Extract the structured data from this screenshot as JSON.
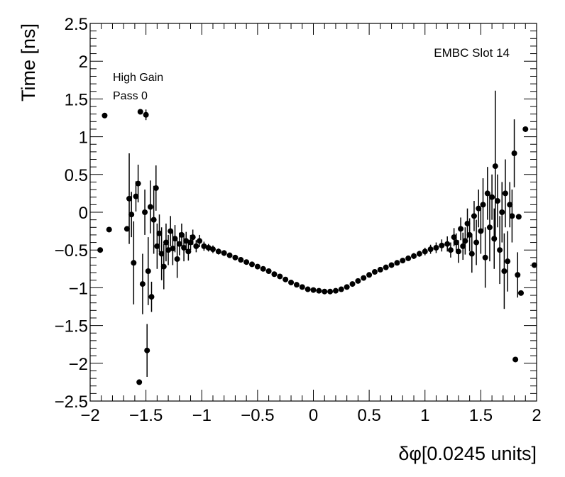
{
  "chart_data": {
    "type": "scatter",
    "title": "EMBC Slot 14",
    "annotations": [
      "High Gain",
      "Pass 0"
    ],
    "xlabel": "δφ[0.0245 units]",
    "ylabel": "Time [ns]",
    "xlim": [
      -2,
      2
    ],
    "ylim": [
      -2.5,
      2.5
    ],
    "x_ticks": [
      "−2",
      "−1.5",
      "−1",
      "−0.5",
      "0",
      "0.5",
      "1",
      "1.5",
      "2"
    ],
    "y_ticks": [
      "2.5",
      "2",
      "1.5",
      "1",
      "0.5",
      "0",
      "−0.5",
      "−1",
      "−1.5",
      "−2",
      "−2.5"
    ],
    "grid": false,
    "marker_color": "#000000",
    "points": [
      {
        "x": -1.87,
        "y": 1.28,
        "err": 0
      },
      {
        "x": -1.91,
        "y": -0.5,
        "err": 0
      },
      {
        "x": -1.83,
        "y": -0.23,
        "err": 0
      },
      {
        "x": -1.55,
        "y": 1.33,
        "err": 0
      },
      {
        "x": -1.5,
        "y": 1.29,
        "err": 0.07
      },
      {
        "x": -1.67,
        "y": -0.22,
        "err": 0
      },
      {
        "x": -1.65,
        "y": 0.18,
        "err": 0.6
      },
      {
        "x": -1.63,
        "y": -0.03,
        "err": 0.3
      },
      {
        "x": -1.61,
        "y": -0.67,
        "err": 0.55
      },
      {
        "x": -1.59,
        "y": 0.21,
        "err": 0.2
      },
      {
        "x": -1.57,
        "y": 0.38,
        "err": 0.25
      },
      {
        "x": -1.56,
        "y": -2.25,
        "err": 0
      },
      {
        "x": -1.53,
        "y": -0.95,
        "err": 0.4
      },
      {
        "x": -1.51,
        "y": 0.0,
        "err": 0.3
      },
      {
        "x": -1.49,
        "y": -1.83,
        "err": 0.35
      },
      {
        "x": -1.48,
        "y": -0.78,
        "err": 0.45
      },
      {
        "x": -1.46,
        "y": 0.07,
        "err": 0.35
      },
      {
        "x": -1.45,
        "y": -1.12,
        "err": 0.2
      },
      {
        "x": -1.43,
        "y": -0.1,
        "err": 0.45
      },
      {
        "x": -1.41,
        "y": 0.32,
        "err": 0.3
      },
      {
        "x": -1.4,
        "y": -0.45,
        "err": 0.3
      },
      {
        "x": -1.38,
        "y": -0.28,
        "err": 0.25
      },
      {
        "x": -1.36,
        "y": -0.55,
        "err": 0.35
      },
      {
        "x": -1.34,
        "y": -0.72,
        "err": 0.3
      },
      {
        "x": -1.32,
        "y": -0.4,
        "err": 0.25
      },
      {
        "x": -1.3,
        "y": -0.5,
        "err": 0.2
      },
      {
        "x": -1.28,
        "y": -0.25,
        "err": 0.2
      },
      {
        "x": -1.26,
        "y": -0.48,
        "err": 0.22
      },
      {
        "x": -1.24,
        "y": -0.35,
        "err": 0.18
      },
      {
        "x": -1.22,
        "y": -0.62,
        "err": 0.25
      },
      {
        "x": -1.2,
        "y": -0.42,
        "err": 0.15
      },
      {
        "x": -1.18,
        "y": -0.3,
        "err": 0.15
      },
      {
        "x": -1.16,
        "y": -0.47,
        "err": 0.18
      },
      {
        "x": -1.14,
        "y": -0.38,
        "err": 0.12
      },
      {
        "x": -1.12,
        "y": -0.52,
        "err": 0.12
      },
      {
        "x": -1.1,
        "y": -0.4,
        "err": 0.1
      },
      {
        "x": -1.08,
        "y": -0.33,
        "err": 0.1
      },
      {
        "x": -1.05,
        "y": -0.45,
        "err": 0.08
      },
      {
        "x": -1.02,
        "y": -0.38,
        "err": 0.08
      },
      {
        "x": -0.98,
        "y": -0.45,
        "err": 0.06
      },
      {
        "x": -0.94,
        "y": -0.47,
        "err": 0.05
      },
      {
        "x": -0.9,
        "y": -0.49,
        "err": 0.05
      },
      {
        "x": -0.85,
        "y": -0.52,
        "err": 0.04
      },
      {
        "x": -0.8,
        "y": -0.54,
        "err": 0.04
      },
      {
        "x": -0.75,
        "y": -0.57,
        "err": 0.03
      },
      {
        "x": -0.7,
        "y": -0.6,
        "err": 0.03
      },
      {
        "x": -0.65,
        "y": -0.63,
        "err": 0.02
      },
      {
        "x": -0.6,
        "y": -0.66,
        "err": 0.02
      },
      {
        "x": -0.55,
        "y": -0.69,
        "err": 0.02
      },
      {
        "x": -0.5,
        "y": -0.72,
        "err": 0.02
      },
      {
        "x": -0.45,
        "y": -0.75,
        "err": 0.02
      },
      {
        "x": -0.4,
        "y": -0.78,
        "err": 0.01
      },
      {
        "x": -0.35,
        "y": -0.82,
        "err": 0.01
      },
      {
        "x": -0.3,
        "y": -0.85,
        "err": 0.01
      },
      {
        "x": -0.25,
        "y": -0.89,
        "err": 0.01
      },
      {
        "x": -0.2,
        "y": -0.93,
        "err": 0.01
      },
      {
        "x": -0.15,
        "y": -0.96,
        "err": 0.01
      },
      {
        "x": -0.1,
        "y": -0.99,
        "err": 0.01
      },
      {
        "x": -0.05,
        "y": -1.02,
        "err": 0.01
      },
      {
        "x": 0.0,
        "y": -1.03,
        "err": 0.01
      },
      {
        "x": 0.05,
        "y": -1.04,
        "err": 0.01
      },
      {
        "x": 0.1,
        "y": -1.05,
        "err": 0.01
      },
      {
        "x": 0.15,
        "y": -1.05,
        "err": 0.01
      },
      {
        "x": 0.2,
        "y": -1.04,
        "err": 0.01
      },
      {
        "x": 0.25,
        "y": -1.02,
        "err": 0.01
      },
      {
        "x": 0.3,
        "y": -0.99,
        "err": 0.01
      },
      {
        "x": 0.35,
        "y": -0.95,
        "err": 0.01
      },
      {
        "x": 0.4,
        "y": -0.91,
        "err": 0.01
      },
      {
        "x": 0.45,
        "y": -0.87,
        "err": 0.01
      },
      {
        "x": 0.5,
        "y": -0.83,
        "err": 0.01
      },
      {
        "x": 0.55,
        "y": -0.79,
        "err": 0.02
      },
      {
        "x": 0.6,
        "y": -0.76,
        "err": 0.02
      },
      {
        "x": 0.65,
        "y": -0.73,
        "err": 0.02
      },
      {
        "x": 0.7,
        "y": -0.7,
        "err": 0.02
      },
      {
        "x": 0.75,
        "y": -0.67,
        "err": 0.02
      },
      {
        "x": 0.8,
        "y": -0.64,
        "err": 0.03
      },
      {
        "x": 0.85,
        "y": -0.61,
        "err": 0.03
      },
      {
        "x": 0.9,
        "y": -0.58,
        "err": 0.04
      },
      {
        "x": 0.95,
        "y": -0.55,
        "err": 0.04
      },
      {
        "x": 1.0,
        "y": -0.52,
        "err": 0.05
      },
      {
        "x": 1.05,
        "y": -0.49,
        "err": 0.06
      },
      {
        "x": 1.1,
        "y": -0.47,
        "err": 0.07
      },
      {
        "x": 1.15,
        "y": -0.44,
        "err": 0.08
      },
      {
        "x": 1.2,
        "y": -0.42,
        "err": 0.1
      },
      {
        "x": 1.23,
        "y": -0.5,
        "err": 0.1
      },
      {
        "x": 1.26,
        "y": -0.33,
        "err": 0.12
      },
      {
        "x": 1.28,
        "y": -0.4,
        "err": 0.12
      },
      {
        "x": 1.3,
        "y": -0.52,
        "err": 0.15
      },
      {
        "x": 1.32,
        "y": -0.22,
        "err": 0.15
      },
      {
        "x": 1.34,
        "y": -0.45,
        "err": 0.18
      },
      {
        "x": 1.36,
        "y": -0.38,
        "err": 0.18
      },
      {
        "x": 1.38,
        "y": -0.15,
        "err": 0.2
      },
      {
        "x": 1.4,
        "y": -0.3,
        "err": 0.22
      },
      {
        "x": 1.42,
        "y": -0.55,
        "err": 0.25
      },
      {
        "x": 1.44,
        "y": -0.05,
        "err": 0.2
      },
      {
        "x": 1.46,
        "y": -0.4,
        "err": 0.3
      },
      {
        "x": 1.48,
        "y": 0.05,
        "err": 0.25
      },
      {
        "x": 1.5,
        "y": -0.25,
        "err": 0.3
      },
      {
        "x": 1.52,
        "y": 0.1,
        "err": 0.35
      },
      {
        "x": 1.54,
        "y": -0.6,
        "err": 0.4
      },
      {
        "x": 1.56,
        "y": 0.25,
        "err": 0.35
      },
      {
        "x": 1.58,
        "y": -0.2,
        "err": 0.45
      },
      {
        "x": 1.6,
        "y": 0.2,
        "err": 0.3
      },
      {
        "x": 1.62,
        "y": -0.35,
        "err": 0.4
      },
      {
        "x": 1.63,
        "y": 0.61,
        "err": 1.0
      },
      {
        "x": 1.65,
        "y": 0.15,
        "err": 0.35
      },
      {
        "x": 1.67,
        "y": -0.5,
        "err": 0.45
      },
      {
        "x": 1.69,
        "y": 0.0,
        "err": 0.4
      },
      {
        "x": 1.71,
        "y": -0.78,
        "err": 0.5
      },
      {
        "x": 1.72,
        "y": 0.25,
        "err": 0.45
      },
      {
        "x": 1.74,
        "y": -0.65,
        "err": 0.4
      },
      {
        "x": 1.76,
        "y": 0.1,
        "err": 0.3
      },
      {
        "x": 1.78,
        "y": -0.05,
        "err": 0.35
      },
      {
        "x": 1.8,
        "y": 0.78,
        "err": 0.45
      },
      {
        "x": 1.81,
        "y": -1.95,
        "err": 0
      },
      {
        "x": 1.83,
        "y": -0.83,
        "err": 0.3
      },
      {
        "x": 1.84,
        "y": -0.06,
        "err": 0
      },
      {
        "x": 1.86,
        "y": -1.07,
        "err": 0
      },
      {
        "x": 1.9,
        "y": 1.1,
        "err": 0
      },
      {
        "x": 1.98,
        "y": -0.7,
        "err": 0
      }
    ]
  }
}
